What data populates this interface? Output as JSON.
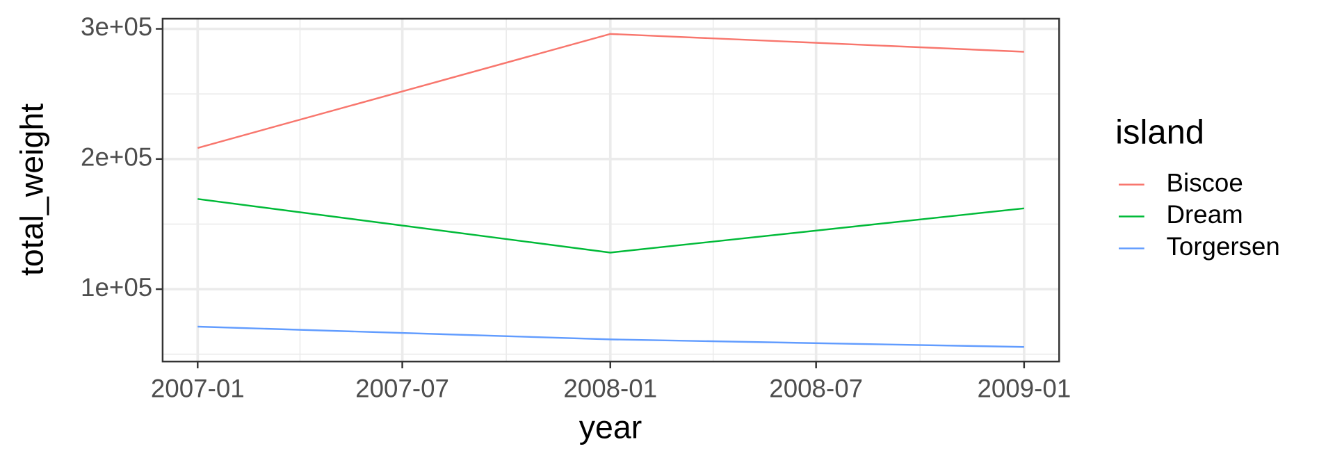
{
  "chart_data": {
    "type": "line",
    "x_label": "year",
    "y_label": "total_weight",
    "x": [
      "2007-01",
      "2008-01",
      "2009-01"
    ],
    "series": [
      {
        "name": "Biscoe",
        "color": "#F8766D",
        "values": [
          208500,
          296100,
          282400
        ]
      },
      {
        "name": "Dream",
        "color": "#00BA38",
        "values": [
          169300,
          128100,
          162100
        ]
      },
      {
        "name": "Torgersen",
        "color": "#619CFF",
        "values": [
          71200,
          61400,
          55600
        ]
      }
    ],
    "legend_title": "island",
    "legend_position": "right",
    "xlim": [
      "2006-12",
      "2009-02"
    ],
    "xticks": [
      "2007-01",
      "2007-07",
      "2008-01",
      "2008-07",
      "2009-01"
    ],
    "ylim": [
      44400,
      307800
    ],
    "yticks": [
      {
        "value": 100000,
        "label": "1e+05"
      },
      {
        "value": 200000,
        "label": "2e+05"
      },
      {
        "value": 300000,
        "label": "3e+05"
      }
    ],
    "grid": true
  }
}
